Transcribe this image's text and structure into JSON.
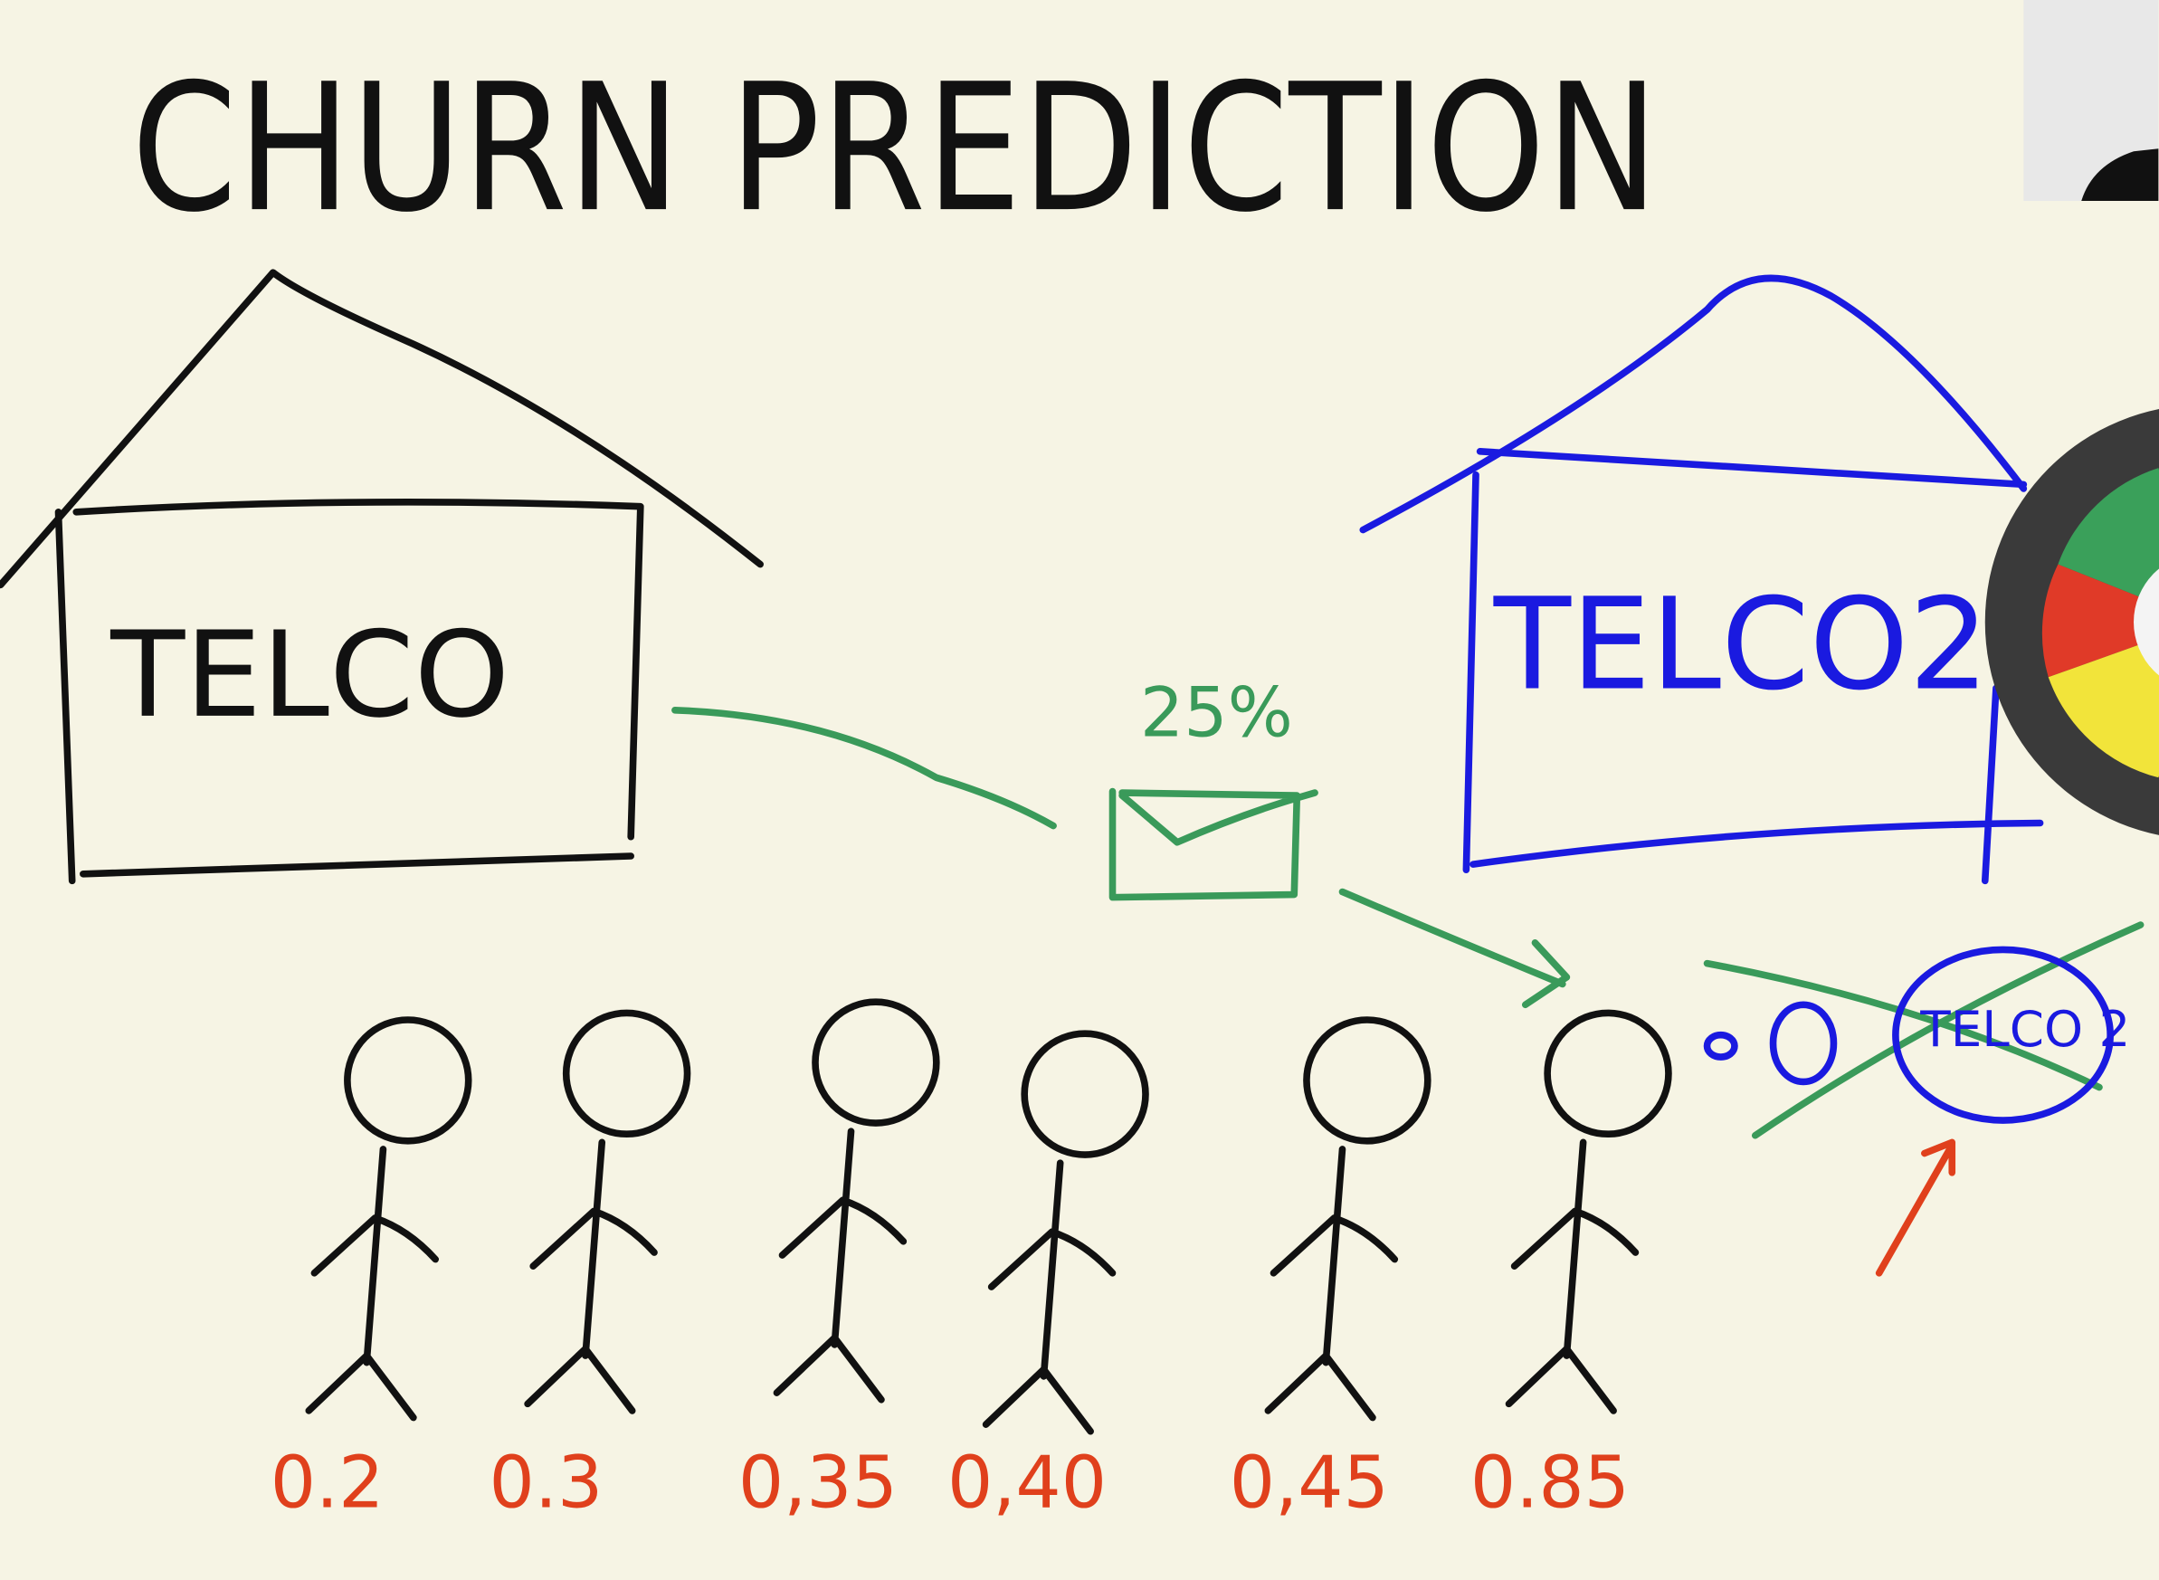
{
  "title": "CHURN PREDICTION",
  "houses": [
    {
      "label": "TELCO"
    },
    {
      "label": "TELCO2"
    }
  ],
  "email": {
    "label": "25%"
  },
  "crossed_out": {
    "label": "TELCO 2"
  },
  "customers": [
    {
      "score": "0.2"
    },
    {
      "score": "0.3"
    },
    {
      "score": "0,35"
    },
    {
      "score": "0,40"
    },
    {
      "score": "0,45"
    },
    {
      "score": "0.85"
    }
  ]
}
